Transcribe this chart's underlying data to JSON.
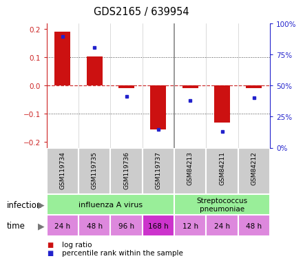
{
  "title": "GDS2165 / 639954",
  "samples": [
    "GSM119734",
    "GSM119735",
    "GSM119736",
    "GSM119737",
    "GSM84213",
    "GSM84211",
    "GSM84212"
  ],
  "log_ratio": [
    0.19,
    0.102,
    -0.008,
    -0.155,
    -0.008,
    -0.13,
    -0.008
  ],
  "percentile_y": [
    0.175,
    0.135,
    -0.038,
    -0.155,
    -0.052,
    -0.163,
    -0.042
  ],
  "ylim": [
    -0.22,
    0.22
  ],
  "y_ticks": [
    -0.2,
    -0.1,
    0.0,
    0.1,
    0.2
  ],
  "y2_pct_ticks": [
    0,
    25,
    50,
    75,
    100
  ],
  "bar_color": "#cc1111",
  "dot_color": "#2222cc",
  "zero_line_color": "#cc3333",
  "grid_line_color": "#444444",
  "ylabel_color_left": "#cc2222",
  "ylabel_color_right": "#2222cc",
  "time_labels": [
    "24 h",
    "48 h",
    "96 h",
    "168 h",
    "12 h",
    "24 h",
    "48 h"
  ],
  "time_colors": [
    "#dd88dd",
    "#dd88dd",
    "#dd88dd",
    "#cc33cc",
    "#dd88dd",
    "#dd88dd",
    "#dd88dd"
  ],
  "infect_label1": "influenza A virus",
  "infect_label2": "Streptococcus\npneumoniae",
  "infect_color": "#99ee99",
  "sample_bg": "#cccccc",
  "legend_bar_label": "log ratio",
  "legend_dot_label": "percentile rank within the sample"
}
